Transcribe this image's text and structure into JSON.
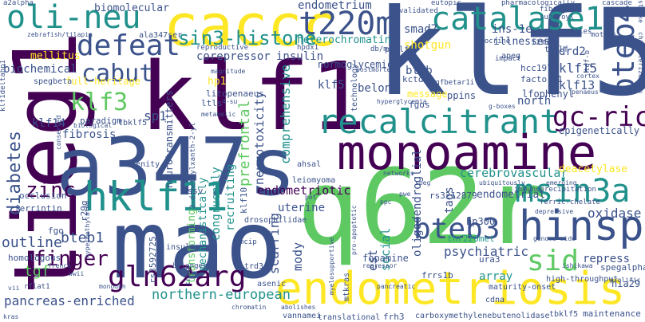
{
  "background": "#ffffff",
  "palette": [
    "#440154",
    "#3b528b",
    "#21918c",
    "#5ec962",
    "#fde725"
  ],
  "words": {
    "klf5_big": "klf5",
    "klf1": "klf1",
    "q62r": "q62r",
    "mao": "mao",
    "tieg1": "tieg1",
    "a347s": "a347s",
    "monoamine": "monoamine",
    "caccc": "caccc",
    "endometriosis": "endometriosis",
    "recalcitrant": "recalcitrant",
    "hklf11": "hklf11",
    "hinsp": "hinsp",
    "catalase1": "catalase1",
    "oli_neu": "oli-neu",
    "t220m": "t220m",
    "defeat": "defeat",
    "msin3a": "msin3a",
    "gln62arg": "gln62arg",
    "bteb3": "bteb3",
    "bteb4": "bteb4",
    "gc_rich": "gc-rich",
    "sid": "sid",
    "cabut": "cabut",
    "klf3": "klf3",
    "sin3_histone": "sin3-histone",
    "finger": "finger",
    "zinc": "zinc",
    "diabetes": "diabetes",
    "northern_european": "northern-european",
    "pancreas_enriched": "pancreas-enriched",
    "endometrium": "endometrium",
    "biomolecular": "biomolecular",
    "smad7": "smad7",
    "heterochromatin": "heterochromatin",
    "shotgun": "shotgun",
    "corepressor": "corepressor",
    "insulin": "insulin",
    "full_heritage": "full-heritage",
    "biochemical": "biochemical",
    "mellitus": "mellitus",
    "klf14": "klf14",
    "fibrosis": "fibrosis",
    "sp1": "sp1",
    "hp1": "hp1",
    "klf15": "klf15",
    "klf13": "klf13",
    "klf5_small": "klf5",
    "bteb": "bteb",
    "belong": "belong",
    "endometriotic": "endometriotic",
    "prefrontal": "prefrontal",
    "comprehensive": "comprehensive",
    "cerebrovascular": "cerebrovascular",
    "oxidase": "oxidase",
    "deacetylase": "deacetylase",
    "uterine": "uterine",
    "neurotoxicity": "neurotoxicity",
    "psychiatric": "psychiatric",
    "social": "social",
    "scarring": "scarring",
    "mody": "mody",
    "oligodendroglial": "oligodendroglial",
    "endometrial": "endometrial",
    "tags": "tags",
    "array": "array",
    "repress": "repress",
    "est": "est",
    "bteb1": "bteb1",
    "outline": "outline",
    "tgf": "tgf",
    "drd2": "drd2",
    "ins_1e": "ins-1e",
    "north": "north",
    "ala347ser": "ala347ser",
    "illnesses": "illnesses",
    "klf10": "klf10",
    "recruiting": "recruiting",
    "congruently": "congruently",
    "transforming": "transforming",
    "mechanistically": "mechanistically",
    "epigenetically": "epigenetically",
    "normoglycemic": "normoglycemic",
    "message": "message",
    "fgos": "fgos",
    "kctd8": "kctd8",
    "ppins": "ppins",
    "lfophenyl": "lfophenyl",
    "hcc197": "hcc197",
    "factor11": "factor11",
    "rs3212879": "rs3212879",
    "hp300": "hp300",
    "thr220met": "thr220met",
    "fopamine": "fopamine",
    "fgo": "fgo",
    "r29q": "r29q",
    "homologous": "homologous",
    "ferrintin": "ferrintin",
    "occlusion": "occlusion",
    "spegbeta": "spegbeta",
    "spegalpha": "spegalpha",
    "hia29": "hia29",
    "wssv": "wssv",
    "ltls": "ltls",
    "paradigm": "paradigm",
    "litopenaeus": "litopenaeus",
    "technology": "technology",
    "pmklf": "pmklf",
    "tbklf5": "tbklf5",
    "tbklf": "tbklf",
    "apeg": "apeg",
    "trd3": "trd3",
    "ingenity": "ingenity",
    "neurotransmitters": "neurotransmitters",
    "frrs1b": "frrs1b",
    "ura3": "ura3",
    "frh3": "frh3",
    "translational": "translational",
    "vannamei": "vannamei",
    "maintenance": "maintenance",
    "tbklf5_b": "tbklf5",
    "carboxy": "carboxymethylenebutenolidase",
    "cdna": "cdna",
    "asenic": "asenic",
    "maturity_onset": "maturity-onset",
    "high_throughput": "high-throughput",
    "immunoprecipitation": "immunoprecipitation",
    "leiomyoma": "leiomyoma",
    "ahsal": "ahsal",
    "drosophilidae": "drosophilidae",
    "r2snp": "rs3592725",
    "mtkras": "mtkras",
    "insults": "insults",
    "belangeri": "belangeri",
    "reproductive": "reproductive",
    "zebrafish": "zebrafish/tilapia",
    "a2alpha": "a2alpha",
    "cascade": "cascade",
    "validated": "validated",
    "eutopic": "eutopic",
    "pharmacologically": "pharmacologically",
    "fibrotic": "fibrotic",
    "suberoyl": "suberoyl",
    "families": "families",
    "motifs": "motifs",
    "exocrine": "exocrine",
    "t29h": "t29h",
    "hpdx1": "hpdx1",
    "impact": "impact",
    "tgfbetar1i": "tgfbetar1i",
    "penaeus": "penaeus",
    "cortex": "cortex",
    "metabolic": "metabolic",
    "magnitude": "magnitude",
    "biological": "biological",
    "dimethyl": "3-dimethylxanth-2-yl",
    "d4su": "4-su",
    "klf1deltahp1": "klf1deltahp1",
    "networks": "networks",
    "depressive": "depressive",
    "ferric_chelate": "ferric-chelate",
    "emerging": "emerging",
    "genome_wide": "genome-wide",
    "ishikawa": "ishikawa",
    "prolific": "prolific",
    "pancreatic": "pancreatic",
    "abolishes": "abolishes",
    "chromatin": "chromatin",
    "rflat1": "rflat1",
    "kras": "kras",
    "vii": "vii",
    "french": "french",
    "monodon": "monodon",
    "tract": "tract",
    "conserved": "conserved",
    "hypermethylated": "hypermethylated",
    "wwii": "wwii",
    "myelosupportive": "myelosupportive",
    "pro_apoptotic": "pro-apoptotic",
    "repressor": "repressor",
    "characterization": "characterization",
    "stroke": "stroke",
    "db_m": "db/m",
    "postmortem": "postmortem",
    "hyperglycemia": "hyperglycemia",
    "g_boxes": "g-boxes",
    "speg": "speg",
    "upstream": "ubiquitously",
    "pet": "pet",
    "pwe": "pwe",
    "mcip": "mcip",
    "ppc": "ppc",
    "tgf_b": "tgf-b"
  }
}
